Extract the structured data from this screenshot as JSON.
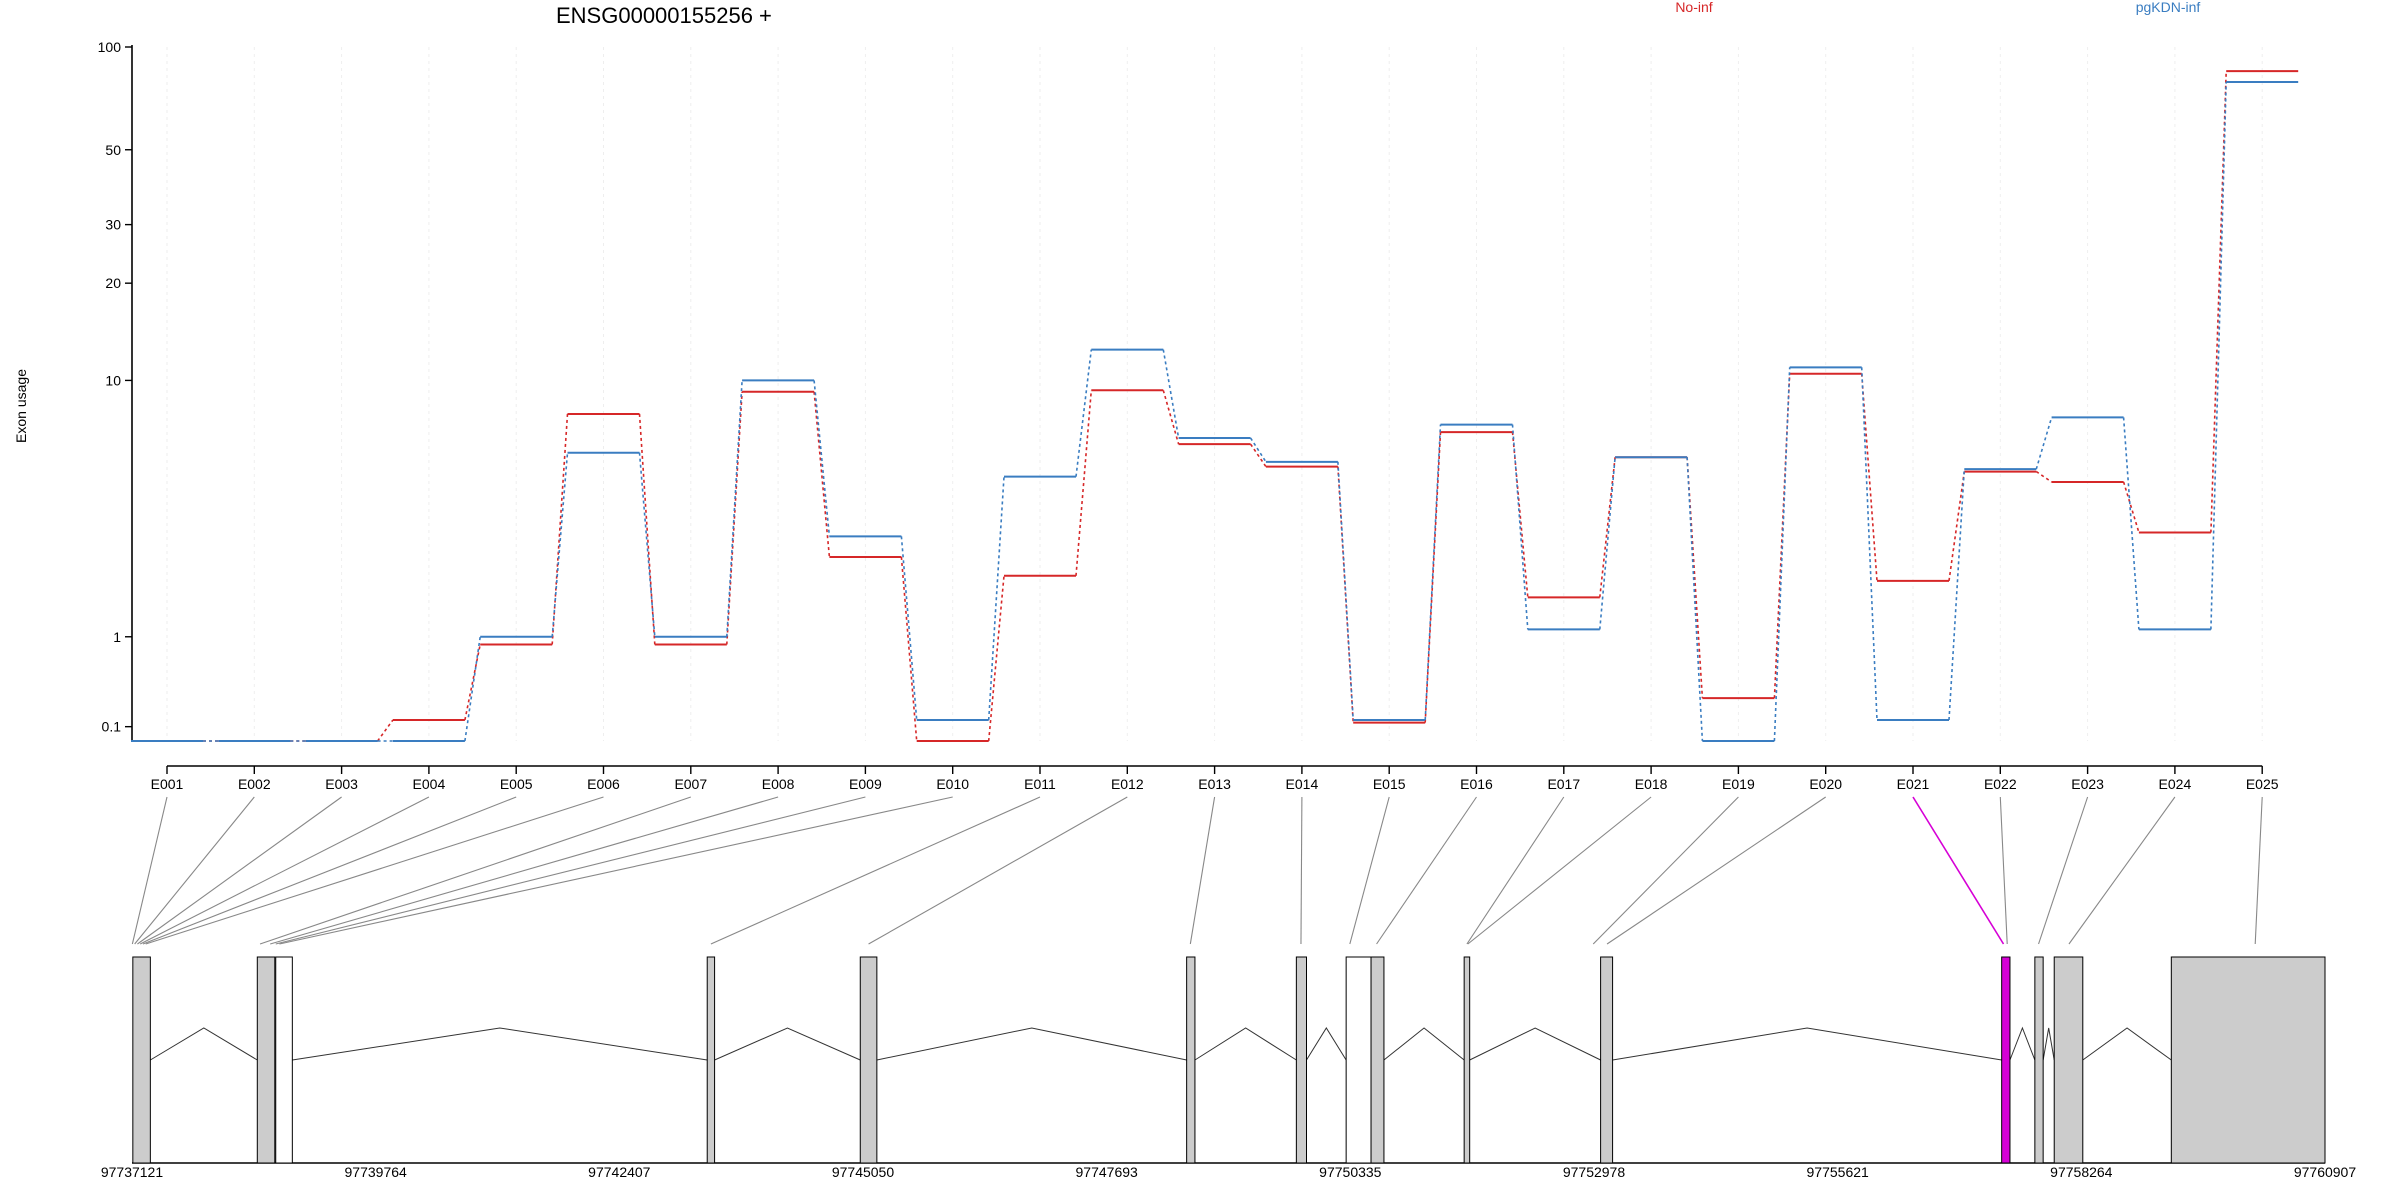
{
  "chart_data": {
    "type": "line",
    "title": "ENSG00000155256 +",
    "ylabel": "Exon usage",
    "xlabel": "",
    "y_scale": "log(1+y)",
    "ylim": [
      0,
      100
    ],
    "yticks": [
      100,
      50,
      30,
      20,
      10,
      1,
      0.1
    ],
    "ytick_labels": [
      "100",
      "50",
      "30",
      "20",
      "10",
      "1",
      "0.1"
    ],
    "categories": [
      "E001",
      "E002",
      "E003",
      "E004",
      "E005",
      "E006",
      "E007",
      "E008",
      "E009",
      "E010",
      "E011",
      "E012",
      "E013",
      "E014",
      "E015",
      "E016",
      "E017",
      "E018",
      "E019",
      "E020",
      "E021",
      "E022",
      "E023",
      "E024",
      "E025"
    ],
    "series": [
      {
        "name": "No-inf",
        "color": "#d62728",
        "values": [
          0,
          0,
          0,
          0.15,
          0.9,
          7.8,
          0.9,
          9.2,
          2.4,
          0,
          2,
          9.3,
          6.2,
          5.2,
          0.13,
          6.8,
          1.6,
          5.6,
          0.33,
          10.5,
          1.9,
          5,
          4.6,
          3,
          85
        ]
      },
      {
        "name": "pgKDN-inf",
        "color": "#3a7dc1",
        "values": [
          0,
          0,
          0,
          0,
          1,
          5.8,
          1,
          10,
          2.9,
          0.15,
          4.8,
          12.5,
          6.5,
          5.4,
          0.15,
          7.2,
          1.1,
          5.6,
          0,
          11,
          0.15,
          5.1,
          7.6,
          1.1,
          79
        ]
      }
    ],
    "legend_placement": "top",
    "genome": {
      "coordinate_labels": [
        "97737121",
        "97739764",
        "97742407",
        "97745050",
        "97747693",
        "97750335",
        "97752978",
        "97755621",
        "97758264",
        "97760907"
      ],
      "start": 97737121,
      "end": 97760907,
      "highlight_exon": "E021",
      "highlight_color": "#d600d6",
      "exon_color": "#cccccc",
      "exon_blocks": [
        {
          "start": 97737130,
          "end": 97737320,
          "fill": "#cccccc"
        },
        {
          "start": 97738480,
          "end": 97738670,
          "fill": "#cccccc"
        },
        {
          "start": 97738680,
          "end": 97738860,
          "fill": "#ffffff"
        },
        {
          "start": 97743360,
          "end": 97743440,
          "fill": "#cccccc"
        },
        {
          "start": 97745020,
          "end": 97745200,
          "fill": "#cccccc"
        },
        {
          "start": 97748560,
          "end": 97748650,
          "fill": "#cccccc"
        },
        {
          "start": 97749750,
          "end": 97749860,
          "fill": "#cccccc"
        },
        {
          "start": 97750290,
          "end": 97750560,
          "fill": "#ffffff"
        },
        {
          "start": 97750560,
          "end": 97750700,
          "fill": "#cccccc"
        },
        {
          "start": 97751570,
          "end": 97751630,
          "fill": "#cccccc"
        },
        {
          "start": 97753050,
          "end": 97753180,
          "fill": "#cccccc"
        },
        {
          "start": 97757400,
          "end": 97757490,
          "fill": "#d600d6"
        },
        {
          "start": 97757760,
          "end": 97757850,
          "fill": "#cccccc"
        },
        {
          "start": 97757970,
          "end": 97758280,
          "fill": "#cccccc"
        },
        {
          "start": 97759240,
          "end": 97760907,
          "fill": "#cccccc"
        }
      ],
      "exon_positions": [
        97737125,
        97737150,
        97737180,
        97737210,
        97737240,
        97737270,
        97738510,
        97738620,
        97738680,
        97738720,
        97743400,
        97745110,
        97748600,
        97749800,
        97750330,
        97750620,
        97751600,
        97751610,
        97752970,
        97753120,
        97757420,
        97757460,
        97757800,
        97758130,
        97760150
      ]
    }
  }
}
